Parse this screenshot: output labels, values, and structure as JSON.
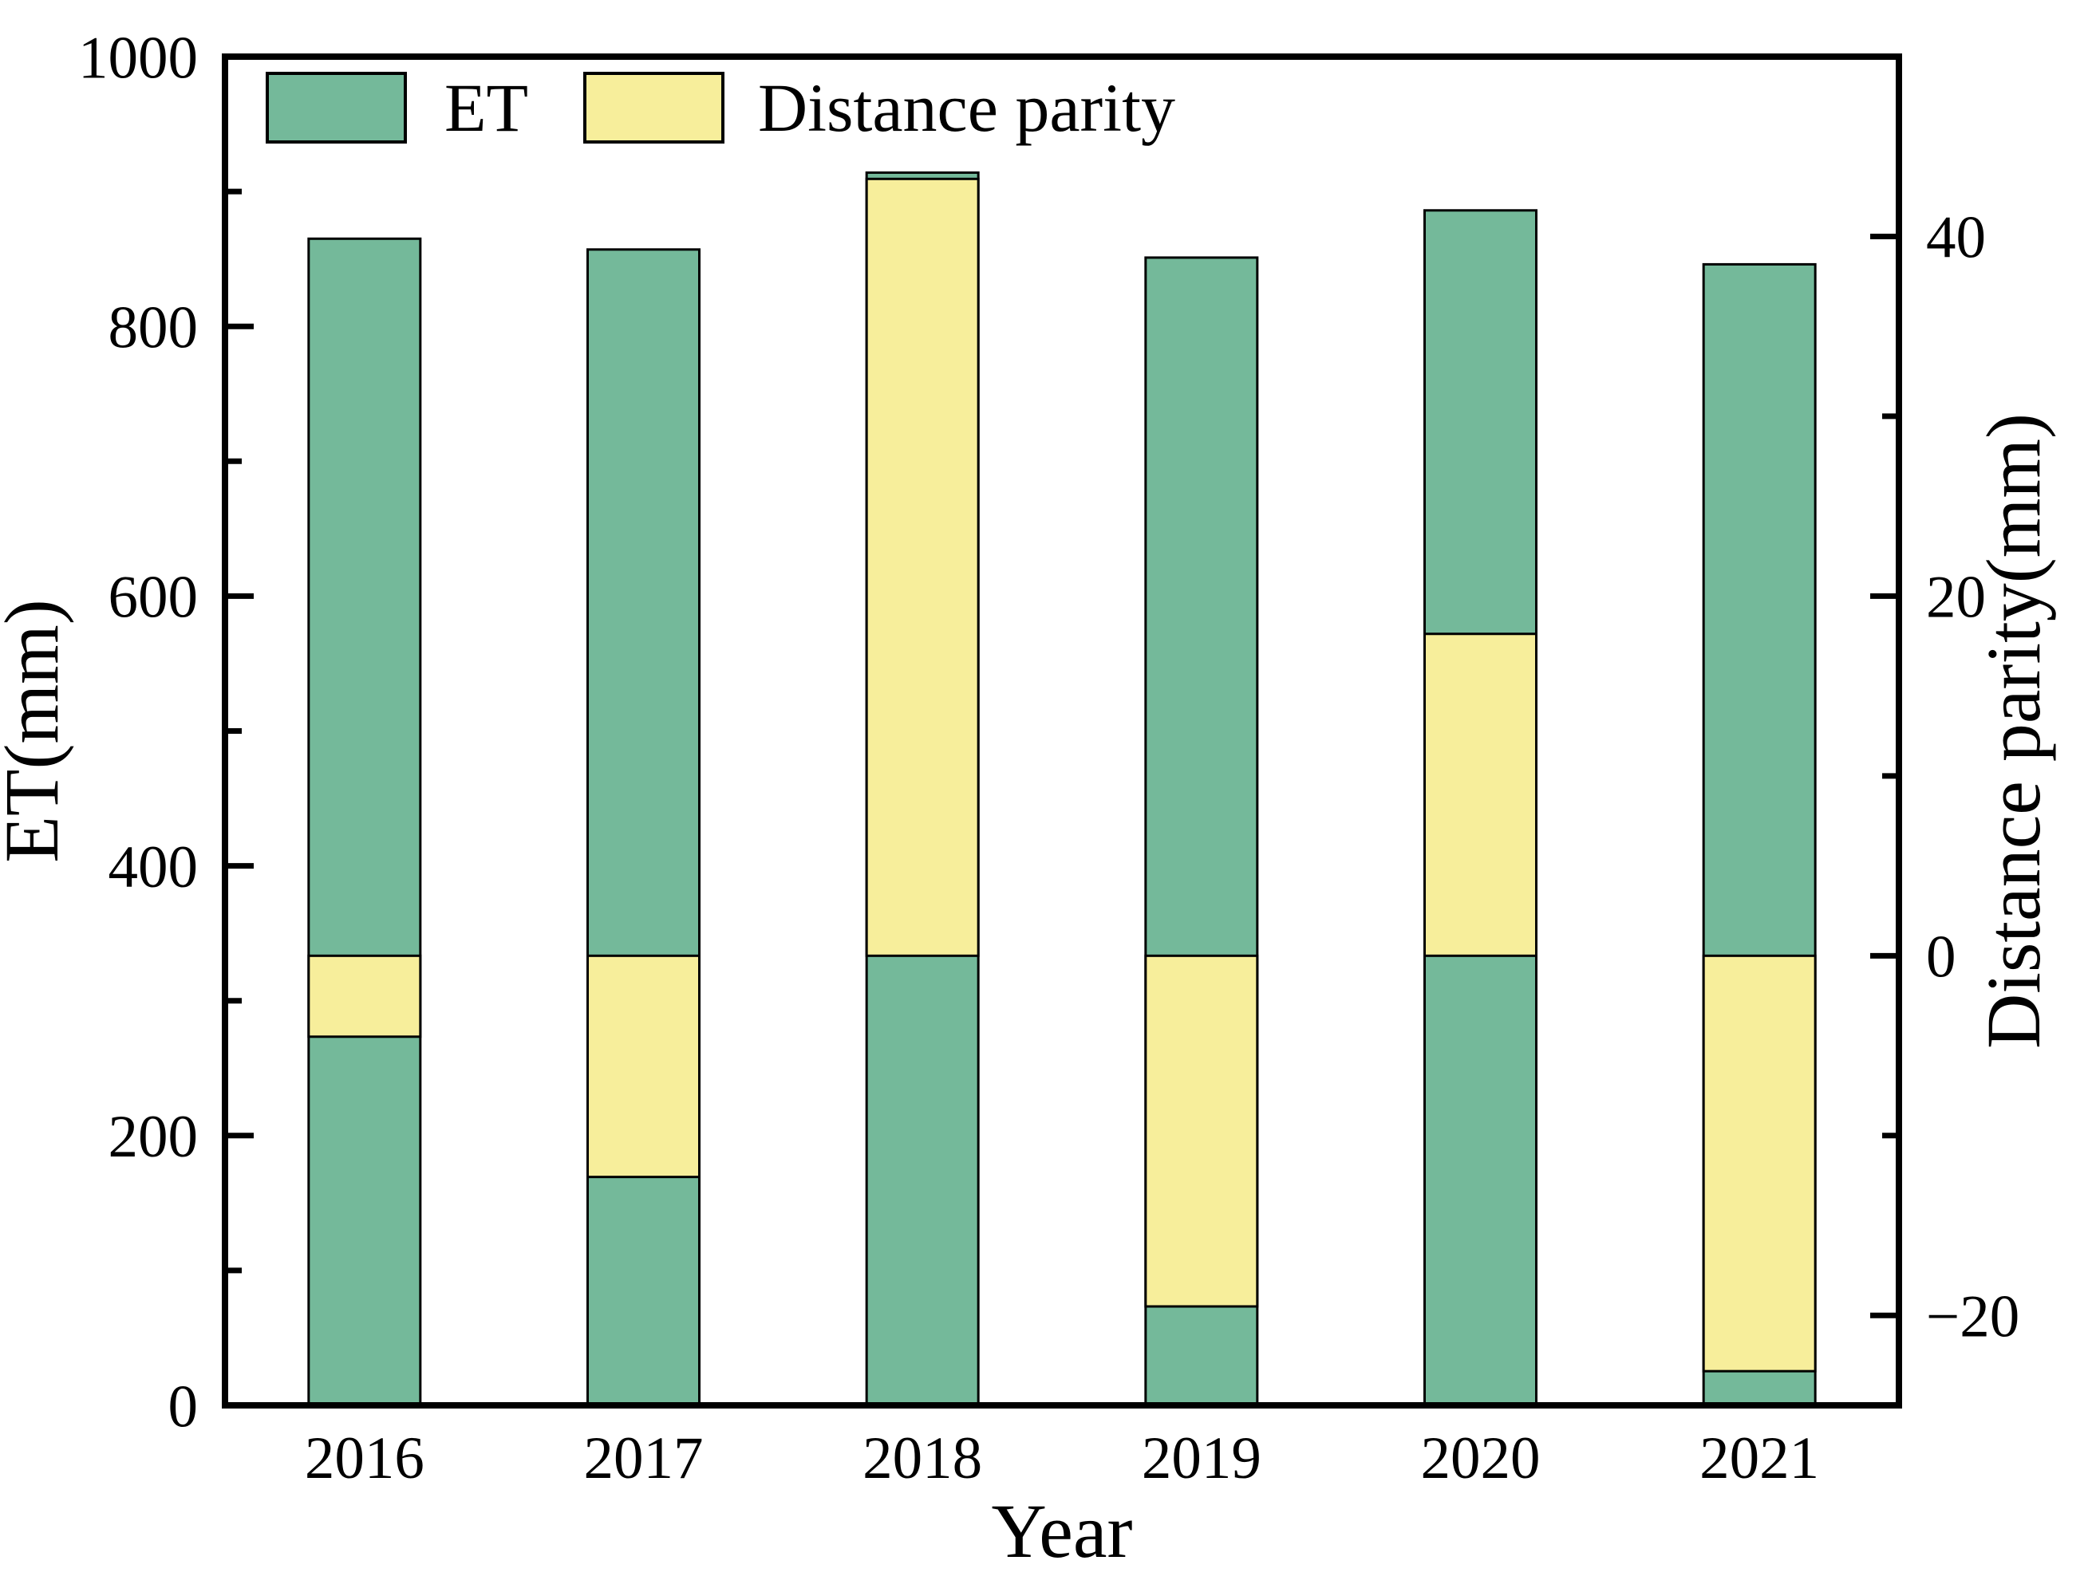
{
  "chart_data": {
    "type": "bar",
    "title": "",
    "categories": [
      "2016",
      "2017",
      "2018",
      "2019",
      "2020",
      "2021"
    ],
    "series": [
      {
        "name": "ET",
        "axis": "left",
        "color": "#74b99a",
        "values": [
          865,
          857,
          914,
          851,
          886,
          846
        ]
      },
      {
        "name": "Distance parity",
        "axis": "right",
        "color": "#f7ee9b",
        "values": [
          -4.5,
          -12.3,
          43.2,
          -19.5,
          17.9,
          -23.1
        ]
      }
    ],
    "xlabel": "Year",
    "left_axis": {
      "label": "ET(mm)",
      "min": 0,
      "max": 1000,
      "major_ticks": [
        0,
        200,
        400,
        600,
        800,
        1000
      ],
      "minor_ticks": [
        100,
        300,
        500,
        700,
        900
      ]
    },
    "right_axis": {
      "label": "Distance parity(mm)",
      "min": -25,
      "max": 50,
      "major_ticks": [
        -20,
        0,
        20,
        40
      ],
      "minor_ticks": [
        -10,
        10,
        30
      ]
    },
    "legend": {
      "position": "top-left",
      "entries": [
        "ET",
        "Distance parity"
      ]
    },
    "grid": false,
    "colors": {
      "background": "#ffffff",
      "frame": "#000000",
      "bar_outline": "#000000"
    }
  }
}
